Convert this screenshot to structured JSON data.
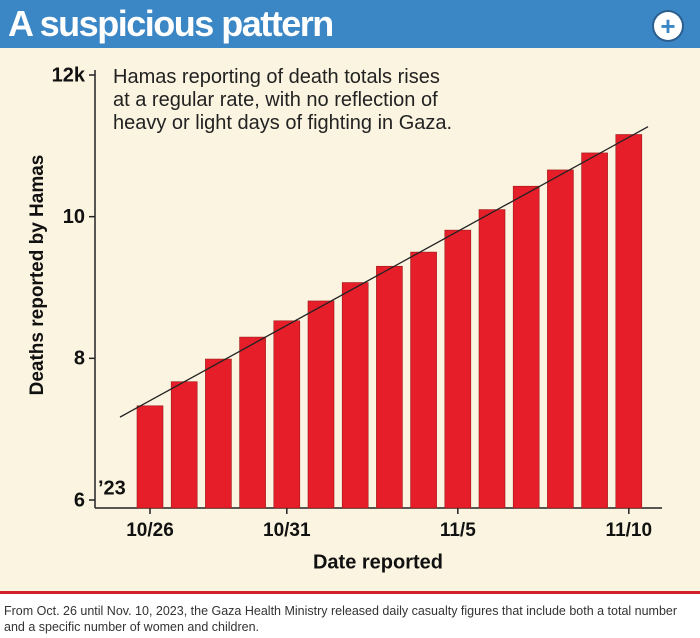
{
  "chart_data": {
    "type": "bar",
    "title": "A suspicious pattern",
    "annotation": "Hamas reporting of death totals rises at a regular rate, with no reflection of heavy or light days of fighting in Gaza.",
    "year_label": "’23",
    "y_label": "Deaths reported by Hamas",
    "x_label": "Date reported",
    "caption": "From Oct. 26 until Nov. 10, 2023, the Gaza Health Ministry released daily casualty figures that include both a total number and a specific number of women and children.",
    "categories": [
      "10/26",
      null,
      null,
      null,
      "10/31",
      null,
      null,
      null,
      null,
      "11/5",
      null,
      null,
      null,
      null,
      "11/10"
    ],
    "values": [
      7.33,
      7.67,
      7.99,
      8.3,
      8.53,
      8.81,
      9.07,
      9.3,
      9.5,
      9.81,
      10.1,
      10.43,
      10.66,
      10.9,
      11.16
    ],
    "color": "#e61e2a",
    "trendline": {
      "start": 7.17,
      "end": 11.27,
      "color": "#222222"
    },
    "ylim": [
      6,
      12
    ],
    "yticks": [
      {
        "value": 12,
        "label": "12k"
      },
      10,
      8,
      6
    ]
  }
}
